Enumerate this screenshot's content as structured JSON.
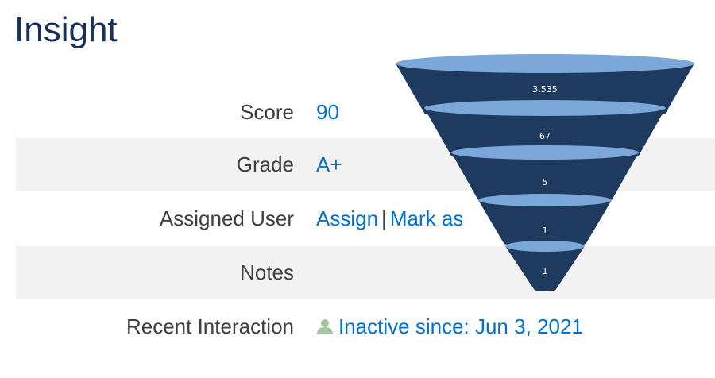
{
  "header": {
    "title": "Insight"
  },
  "fields": {
    "score": {
      "label": "Score",
      "value": "90"
    },
    "grade": {
      "label": "Grade",
      "value": "A+"
    },
    "assigned_user": {
      "label": "Assigned User",
      "assign_link": "Assign",
      "separator": "|",
      "mark_link": "Mark as"
    },
    "notes": {
      "label": "Notes",
      "value": ""
    },
    "recent_interaction": {
      "label": "Recent Interaction",
      "icon": "person-icon",
      "value": "Inactive since: Jun 3, 2021"
    }
  },
  "colors": {
    "title": "#16325c",
    "link": "#0070d2",
    "row_shade": "#f2f2f2",
    "funnel_top": "#7ba8d8",
    "funnel_body": "#1e3a5f",
    "person_icon": "#a8c4a0"
  },
  "chart_data": {
    "type": "funnel",
    "stages": [
      {
        "value": 3535,
        "label": "3,535"
      },
      {
        "value": 67,
        "label": "67"
      },
      {
        "value": 5,
        "label": "5"
      },
      {
        "value": 1,
        "label": "1"
      },
      {
        "value": 1,
        "label": "1"
      }
    ]
  }
}
